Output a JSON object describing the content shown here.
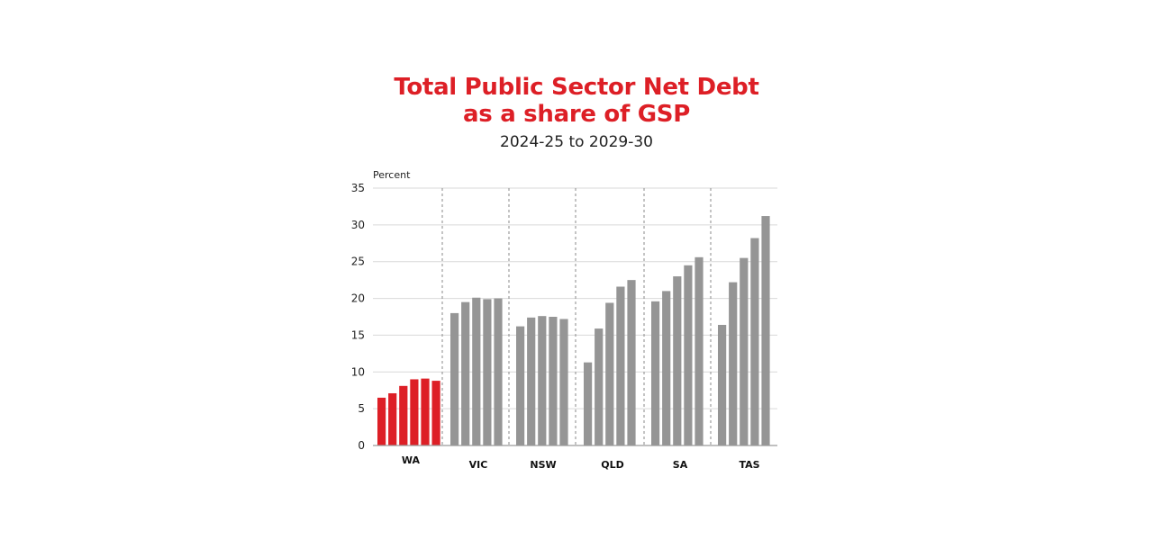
{
  "colors": {
    "title": "#dd1f26",
    "highlight": "#dd1f26",
    "bar": "#959595",
    "grid": "#d9d9d9",
    "axis": "#9a9a9a",
    "separator": "#8a8a8a"
  },
  "chart_data": {
    "type": "bar",
    "title_line1": "Total Public Sector Net Debt",
    "title_line2": "as a share of GSP",
    "subtitle": "2024-25 to 2029-30",
    "ylabel": "Percent",
    "xlabel": "",
    "ylim": [
      0,
      35
    ],
    "yticks": [
      "0",
      "5",
      "10",
      "15",
      "20",
      "25",
      "30",
      "35"
    ],
    "grid": true,
    "categories": [
      "WA",
      "VIC",
      "NSW",
      "QLD",
      "SA",
      "TAS"
    ],
    "highlight_category": "WA",
    "groups": [
      {
        "category": "WA",
        "values": [
          6.5,
          7.1,
          8.1,
          9.0,
          9.1,
          8.8
        ]
      },
      {
        "category": "VIC",
        "values": [
          18.0,
          19.5,
          20.1,
          19.9,
          20.0
        ]
      },
      {
        "category": "NSW",
        "values": [
          16.2,
          17.4,
          17.6,
          17.5,
          17.2
        ]
      },
      {
        "category": "QLD",
        "values": [
          11.3,
          15.9,
          19.4,
          21.6,
          22.5
        ]
      },
      {
        "category": "SA",
        "values": [
          19.6,
          21.0,
          23.0,
          24.5,
          25.6
        ]
      },
      {
        "category": "TAS",
        "values": [
          16.4,
          22.2,
          25.5,
          28.2,
          31.2
        ]
      }
    ]
  }
}
